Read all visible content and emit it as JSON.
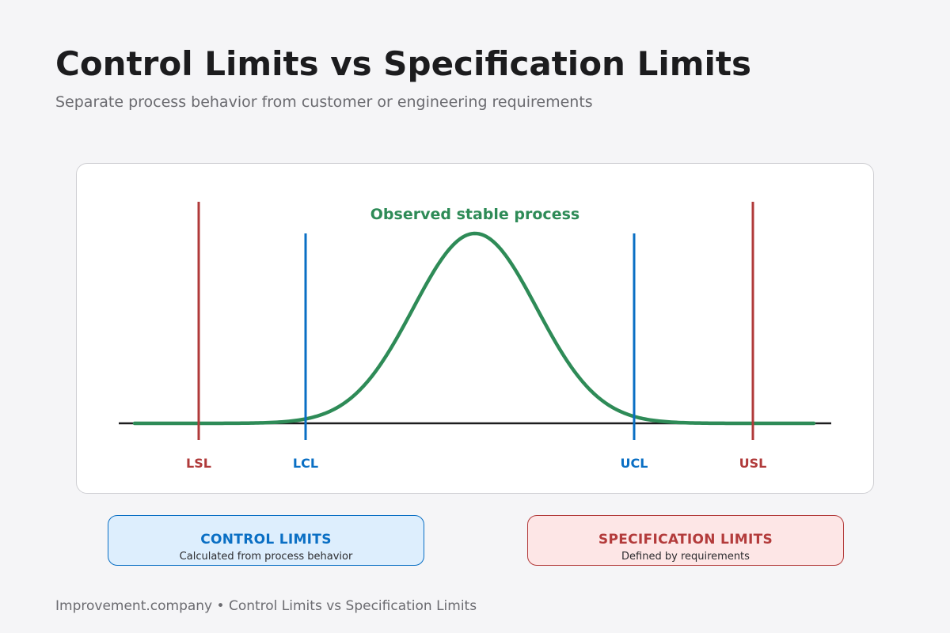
{
  "header": {
    "title": "Control Limits vs Specification Limits",
    "subtitle": "Separate process behavior from customer or engineering requirements"
  },
  "diagram": {
    "curve_label": "Observed stable process",
    "limits": [
      {
        "key": "lsl",
        "label": "LSL",
        "kind": "specification",
        "color": "#b03a3a"
      },
      {
        "key": "lcl",
        "label": "LCL",
        "kind": "control",
        "color": "#0a6fc4"
      },
      {
        "key": "ucl",
        "label": "UCL",
        "kind": "control",
        "color": "#0a6fc4"
      },
      {
        "key": "usl",
        "label": "USL",
        "kind": "specification",
        "color": "#b03a3a"
      }
    ],
    "curve_color": "#2e8b57",
    "baseline_color": "#1c1c1e"
  },
  "legend": {
    "control": {
      "title": "CONTROL LIMITS",
      "description": "Calculated from process behavior",
      "color": "#0a6fc4"
    },
    "specification": {
      "title": "SPECIFICATION LIMITS",
      "description": "Defined by requirements",
      "color": "#b33b3b"
    }
  },
  "footer": {
    "text": "Improvement.company • Control Limits vs Specification Limits"
  }
}
